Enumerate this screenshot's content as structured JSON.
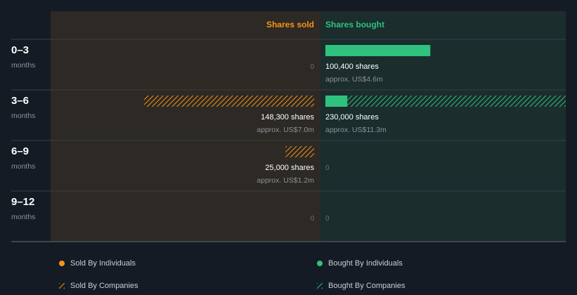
{
  "colors": {
    "background": "#151b24",
    "sold_panel": "#2d2924",
    "bought_panel": "#1b2d2d",
    "sold": "#f7931a",
    "bought": "#2ec27e",
    "divider": "#3a4048",
    "muted_text": "#8b9199",
    "label_text": "#ffffff"
  },
  "chart_data": {
    "type": "bar",
    "orientation": "horizontal-diverging",
    "headers": {
      "sold": "Shares sold",
      "bought": "Shares bought"
    },
    "period_unit": "months",
    "max_shares": 230000,
    "rows": [
      {
        "period": "0–3",
        "sold": {
          "individuals": 0,
          "companies": 0,
          "shares_label": "",
          "value_label": "",
          "zero_label": "0"
        },
        "bought": {
          "individuals": 100400,
          "companies": 0,
          "shares_label": "100,400 shares",
          "value_label": "approx. US$4.6m",
          "zero_label": ""
        }
      },
      {
        "period": "3–6",
        "sold": {
          "individuals": 0,
          "companies": 148300,
          "shares_label": "148,300 shares",
          "value_label": "approx. US$7.0m",
          "zero_label": ""
        },
        "bought": {
          "individuals": 21000,
          "companies": 209000,
          "shares_label": "230,000 shares",
          "value_label": "approx. US$11.3m",
          "zero_label": ""
        }
      },
      {
        "period": "6–9",
        "sold": {
          "individuals": 0,
          "companies": 25000,
          "shares_label": "25,000 shares",
          "value_label": "approx. US$1.2m",
          "zero_label": ""
        },
        "bought": {
          "individuals": 0,
          "companies": 0,
          "shares_label": "",
          "value_label": "",
          "zero_label": "0"
        }
      },
      {
        "period": "9–12",
        "sold": {
          "individuals": 0,
          "companies": 0,
          "shares_label": "",
          "value_label": "",
          "zero_label": "0"
        },
        "bought": {
          "individuals": 0,
          "companies": 0,
          "shares_label": "",
          "value_label": "",
          "zero_label": "0"
        }
      }
    ],
    "legend": [
      {
        "label": "Sold By Individuals",
        "series": "sold",
        "style": "solid"
      },
      {
        "label": "Bought By Individuals",
        "series": "bought",
        "style": "solid"
      },
      {
        "label": "Sold By Companies",
        "series": "sold",
        "style": "hatched"
      },
      {
        "label": "Bought By Companies",
        "series": "bought",
        "style": "hatched"
      }
    ]
  }
}
